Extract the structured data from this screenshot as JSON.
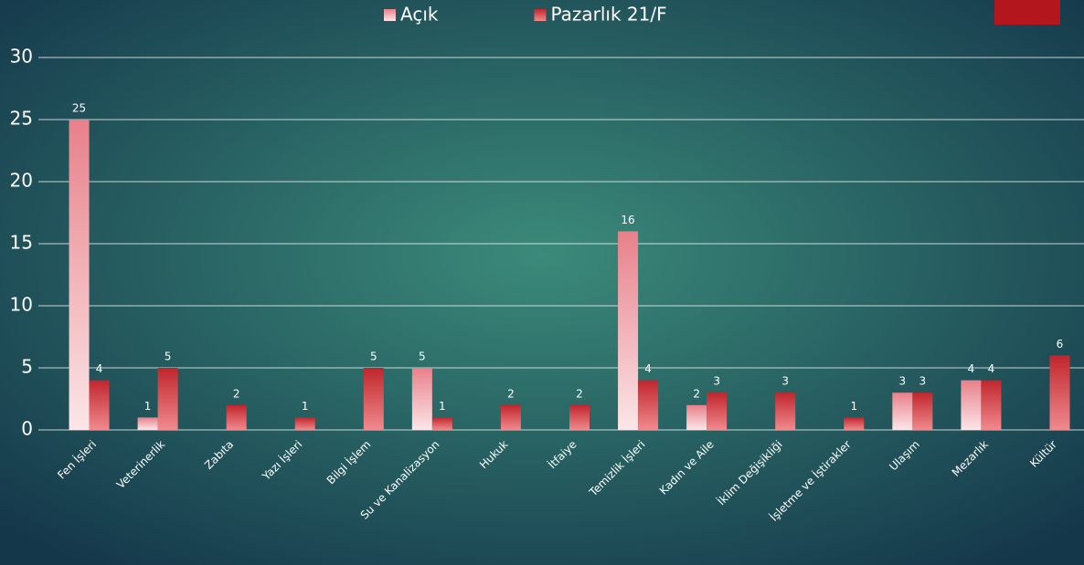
{
  "chart_data": {
    "type": "bar",
    "categories": [
      "Fen İşleri",
      "Veterinerlik",
      "Zabıta",
      "Yazı İşleri",
      "Bilgi İşlem",
      "Su ve Kanalizasyon",
      "Hukuk",
      "İtfaiye",
      "Temizlik İşleri",
      "Kadın ve Aile",
      "İklim Değişikliği",
      "İşletme ve İştirakler",
      "Ulaşım",
      "Mezarlık",
      "Kültür"
    ],
    "series": [
      {
        "name": "Açık",
        "color": "#e8808a",
        "values": [
          25,
          1,
          null,
          null,
          null,
          5,
          null,
          null,
          16,
          2,
          null,
          null,
          3,
          4,
          null
        ]
      },
      {
        "name": "Pazarlık 21/F",
        "color": "#c0262c",
        "values": [
          4,
          5,
          2,
          1,
          5,
          1,
          2,
          2,
          4,
          3,
          3,
          1,
          3,
          4,
          6
        ]
      }
    ],
    "ylim": [
      0,
      30
    ],
    "yticks": [
      0,
      5,
      10,
      15,
      20,
      25,
      30
    ],
    "grid": true,
    "legend": "top"
  }
}
